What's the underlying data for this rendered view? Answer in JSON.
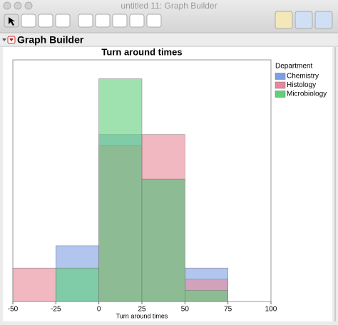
{
  "window": {
    "title": "untitled 11: Graph Builder"
  },
  "panel": {
    "title": "Graph Builder"
  },
  "chart_data": {
    "type": "histogram",
    "title": "Turn around times",
    "x_label": "Turn around times",
    "bins": [
      -50,
      -25,
      0,
      25,
      50,
      75
    ],
    "series": [
      {
        "name": "Chemistry",
        "color": "#7f9fe3",
        "values": [
          0,
          5,
          15,
          11,
          3
        ]
      },
      {
        "name": "Histology",
        "color": "#e8899a",
        "values": [
          3,
          0,
          14,
          15,
          2
        ]
      },
      {
        "name": "Microbiology",
        "color": "#5fcf7a",
        "values": [
          0,
          3,
          20,
          11,
          1
        ]
      }
    ],
    "legend_title": "Department",
    "xlim": [
      -50,
      100
    ],
    "xticks": [
      -50,
      -25,
      0,
      25,
      50,
      75,
      100
    ],
    "ylim": [
      0,
      21.7
    ]
  }
}
